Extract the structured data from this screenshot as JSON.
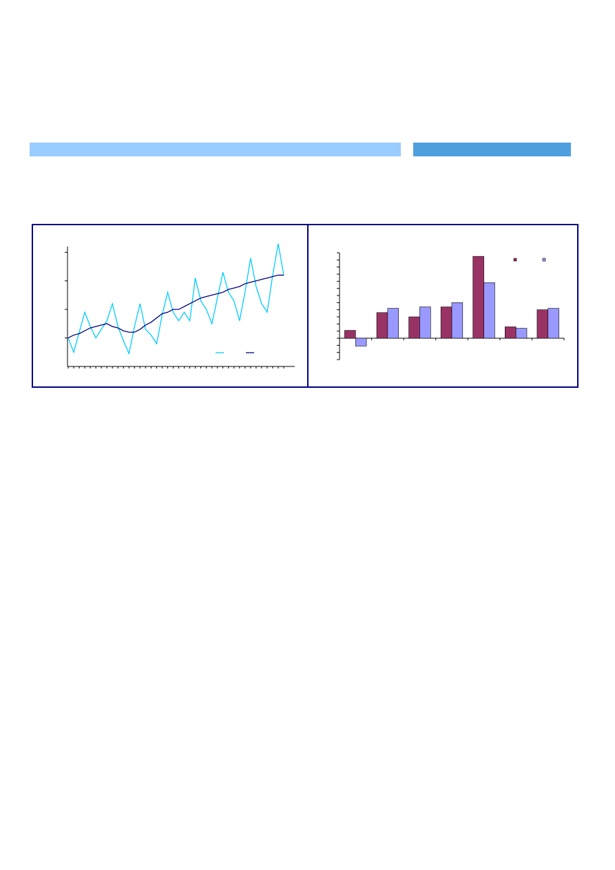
{
  "chart_data": [
    {
      "type": "line",
      "categories": [
        null,
        null,
        null,
        null,
        null,
        null,
        null,
        null,
        null,
        null,
        null,
        null,
        null,
        null,
        null,
        null,
        null,
        null,
        null,
        null,
        null,
        null,
        null,
        null,
        null,
        null,
        null,
        null,
        null,
        null,
        null,
        null,
        null,
        null,
        null,
        null,
        null,
        null,
        null,
        null
      ],
      "series": [
        {
          "color": "#00ccff",
          "values": [
            0.0,
            -0.5,
            0.2,
            0.9,
            0.4,
            0.0,
            0.3,
            0.6,
            1.2,
            0.4,
            -0.1,
            -0.55,
            0.4,
            1.2,
            0.3,
            0.1,
            -0.2,
            0.8,
            1.6,
            0.9,
            0.6,
            0.9,
            0.6,
            2.1,
            1.3,
            1.0,
            0.5,
            1.4,
            2.3,
            1.6,
            1.3,
            0.6,
            1.6,
            2.8,
            1.8,
            1.2,
            0.9,
            2.2,
            3.3,
            2.2
          ]
        },
        {
          "color": "#000080",
          "values": [
            0.0,
            0.1,
            0.15,
            0.25,
            0.35,
            0.4,
            0.45,
            0.5,
            0.4,
            0.35,
            0.25,
            0.2,
            0.2,
            0.3,
            0.45,
            0.55,
            0.7,
            0.85,
            0.9,
            1.0,
            1.0,
            1.1,
            1.2,
            1.3,
            1.4,
            1.45,
            1.5,
            1.55,
            1.6,
            1.7,
            1.75,
            1.8,
            1.9,
            1.95,
            2.0,
            2.05,
            2.1,
            2.15,
            2.2,
            2.2
          ]
        }
      ],
      "ylim": [
        -1,
        3.2
      ],
      "yticks": [
        0,
        1,
        2,
        3
      ]
    },
    {
      "type": "bar",
      "categories": [
        null,
        null,
        null,
        null,
        null,
        null,
        null
      ],
      "series": [
        {
          "color": "#993366",
          "values": [
            1.1,
            3.6,
            3.0,
            4.4,
            11.5,
            1.6,
            4.0
          ]
        },
        {
          "color": "#9999ff",
          "values": [
            -1.1,
            4.2,
            4.4,
            5.0,
            7.8,
            1.4,
            4.2
          ]
        }
      ],
      "ylim": [
        -3,
        12
      ],
      "yticks": [
        -3,
        -2,
        -1,
        0,
        1,
        2,
        3,
        4,
        5,
        6,
        7,
        8,
        9,
        10,
        11,
        12
      ]
    }
  ]
}
